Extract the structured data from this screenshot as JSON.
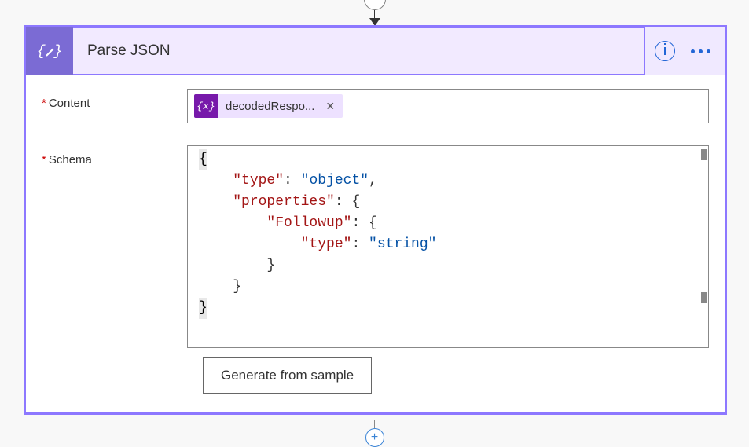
{
  "colors": {
    "card_border": "#8d78ff",
    "header_bg": "#f0e9ff",
    "icon_bg": "#7b6bd4",
    "token_bg": "#ede1ff",
    "token_icon_bg": "#7719aa",
    "accent_blue": "#2266d6",
    "json_key": "#a31515",
    "json_value": "#0451a5"
  },
  "header": {
    "title": "Parse JSON",
    "icon_name": "curly-braces-edit-icon"
  },
  "fields": {
    "content": {
      "label": "Content",
      "required": true,
      "token": {
        "label": "decodedRespo...",
        "icon_text": "{x}"
      }
    },
    "schema": {
      "label": "Schema",
      "required": true,
      "code": {
        "lines": [
          {
            "indent": 0,
            "raw": "{",
            "hl": true
          },
          {
            "indent": 1,
            "key": "type",
            "val": "object",
            "comma": true
          },
          {
            "indent": 1,
            "key": "properties",
            "raw_after": ": {"
          },
          {
            "indent": 2,
            "key": "Followup",
            "raw_after": ": {"
          },
          {
            "indent": 3,
            "key": "type",
            "val": "string"
          },
          {
            "indent": 2,
            "raw": "}"
          },
          {
            "indent": 1,
            "raw": "}"
          },
          {
            "indent": 0,
            "raw": "}",
            "hl": true
          }
        ]
      }
    }
  },
  "button": {
    "generate_label": "Generate from sample"
  }
}
